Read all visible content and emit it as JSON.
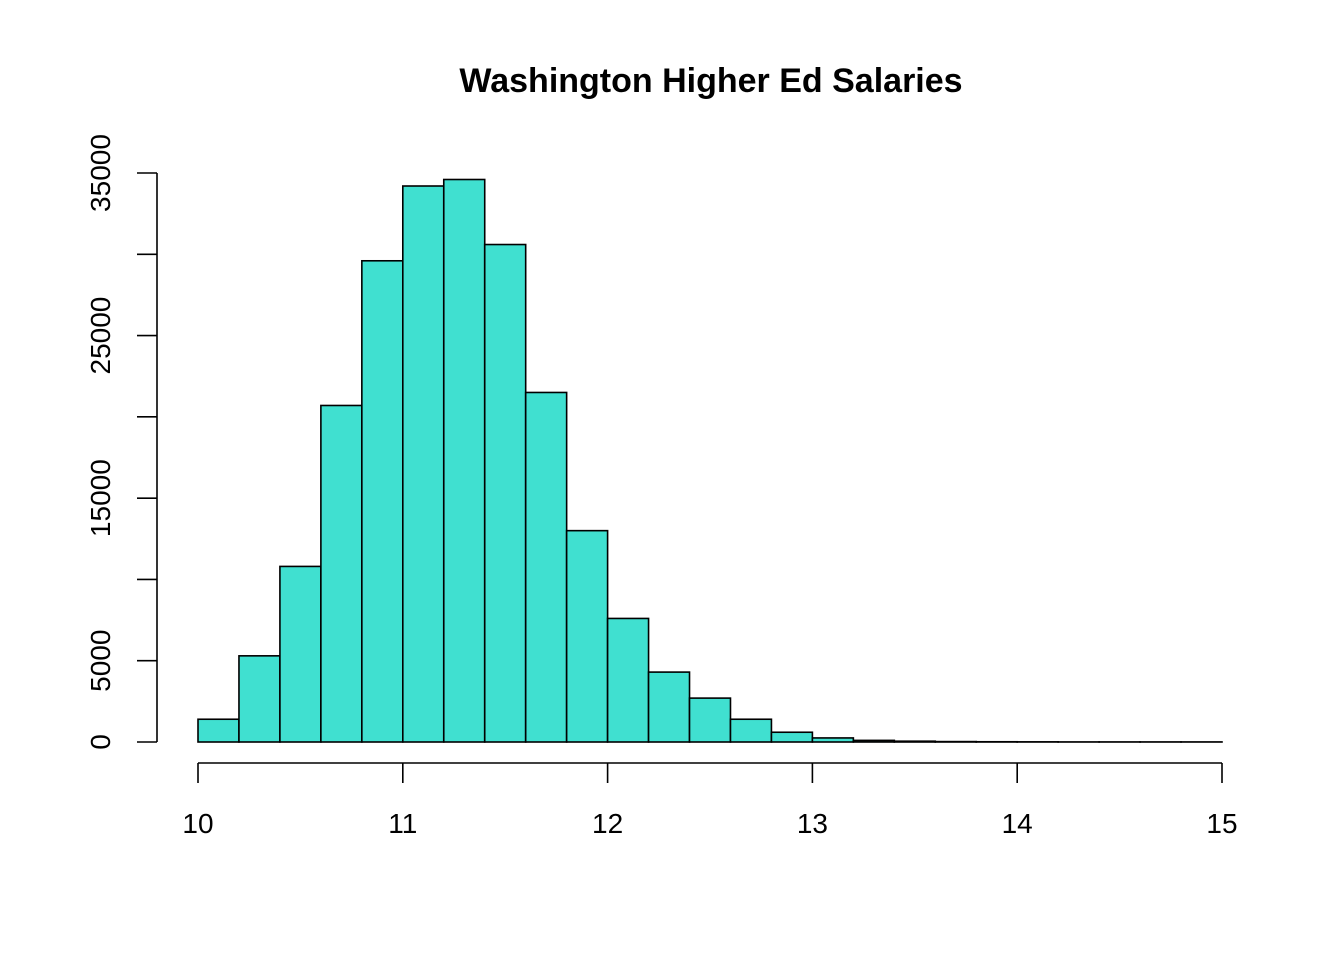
{
  "chart_data": {
    "type": "bar",
    "title": "Washington Higher Ed Salaries",
    "xlabel": "",
    "ylabel": "",
    "bin_width": 0.2,
    "bin_starts": [
      10.0,
      10.2,
      10.4,
      10.6,
      10.8,
      11.0,
      11.2,
      11.4,
      11.6,
      11.8,
      12.0,
      12.2,
      12.4,
      12.6,
      12.8,
      13.0,
      13.2,
      13.4,
      13.6,
      13.8,
      14.0,
      14.2,
      14.4,
      14.6,
      14.8
    ],
    "values": [
      1400,
      5300,
      10800,
      20700,
      29600,
      34200,
      34600,
      30600,
      21500,
      13000,
      7600,
      4300,
      2700,
      1400,
      600,
      250,
      100,
      50,
      25,
      15,
      10,
      5,
      5,
      5,
      5
    ],
    "xlim": [
      10,
      15
    ],
    "ylim": [
      0,
      35000
    ],
    "x_ticks": [
      "10",
      "11",
      "12",
      "13",
      "14",
      "15"
    ],
    "y_ticks": [
      "0",
      "5000",
      "15000",
      "25000",
      "35000"
    ],
    "y_tick_values": [
      0,
      5000,
      10000,
      15000,
      20000,
      25000,
      30000,
      35000
    ],
    "bar_color": "#40E0D0",
    "grid": false,
    "legend": "none"
  }
}
